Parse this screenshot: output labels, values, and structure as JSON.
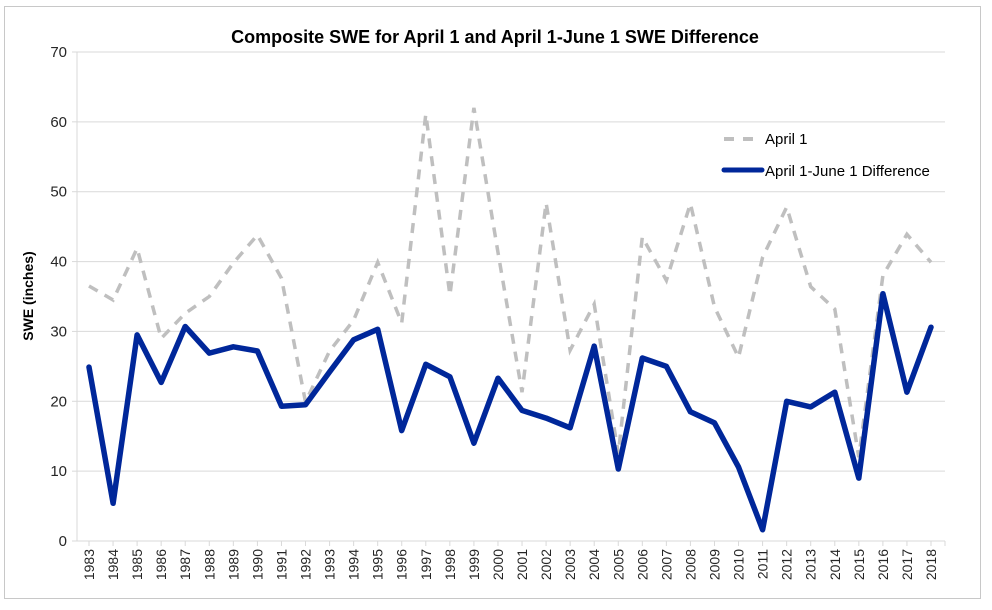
{
  "chart_data": {
    "type": "line",
    "title": "Composite SWE for April 1 and April 1-June 1 SWE Difference",
    "xlabel": "",
    "ylabel": "SWE (inches)",
    "ylim": [
      0,
      70
    ],
    "yticks": [
      0,
      10,
      20,
      30,
      40,
      50,
      60,
      70
    ],
    "grid": true,
    "legend_position": "top-right",
    "categories": [
      "1983",
      "1984",
      "1985",
      "1986",
      "1987",
      "1988",
      "1989",
      "1990",
      "1991",
      "1992",
      "1993",
      "1994",
      "1995",
      "1996",
      "1997",
      "1998",
      "1999",
      "2000",
      "2001",
      "2002",
      "2003",
      "2004",
      "2005",
      "2006",
      "2007",
      "2008",
      "2009",
      "2010",
      "2011",
      "2012",
      "2013",
      "2014",
      "2015",
      "2016",
      "2017",
      "2018"
    ],
    "series": [
      {
        "name": "April 1",
        "style": "dashed",
        "color": "#BFBFBF",
        "values": [
          36.5,
          34.5,
          41.9,
          29.0,
          32.6,
          35.0,
          39.8,
          43.8,
          37.6,
          19.9,
          27.2,
          31.6,
          39.9,
          31.2,
          61.1,
          35.2,
          62.0,
          41.3,
          21.3,
          48.4,
          27.3,
          33.9,
          12.5,
          43.5,
          37.3,
          48.3,
          33.5,
          26.3,
          40.6,
          47.8,
          36.4,
          33.2,
          12.0,
          38.0,
          43.9,
          39.9
        ]
      },
      {
        "name": "April 1-June 1 Difference",
        "style": "solid",
        "color": "#00279A",
        "values": [
          24.9,
          5.4,
          29.5,
          22.7,
          30.7,
          26.9,
          27.8,
          27.2,
          19.3,
          19.5,
          24.2,
          28.8,
          30.3,
          15.8,
          25.3,
          23.5,
          14.0,
          23.3,
          18.7,
          17.6,
          16.2,
          27.9,
          10.3,
          26.2,
          25.0,
          18.5,
          16.9,
          10.6,
          1.6,
          20.0,
          19.2,
          21.3,
          9.0,
          35.4,
          21.3,
          30.6
        ]
      }
    ]
  }
}
